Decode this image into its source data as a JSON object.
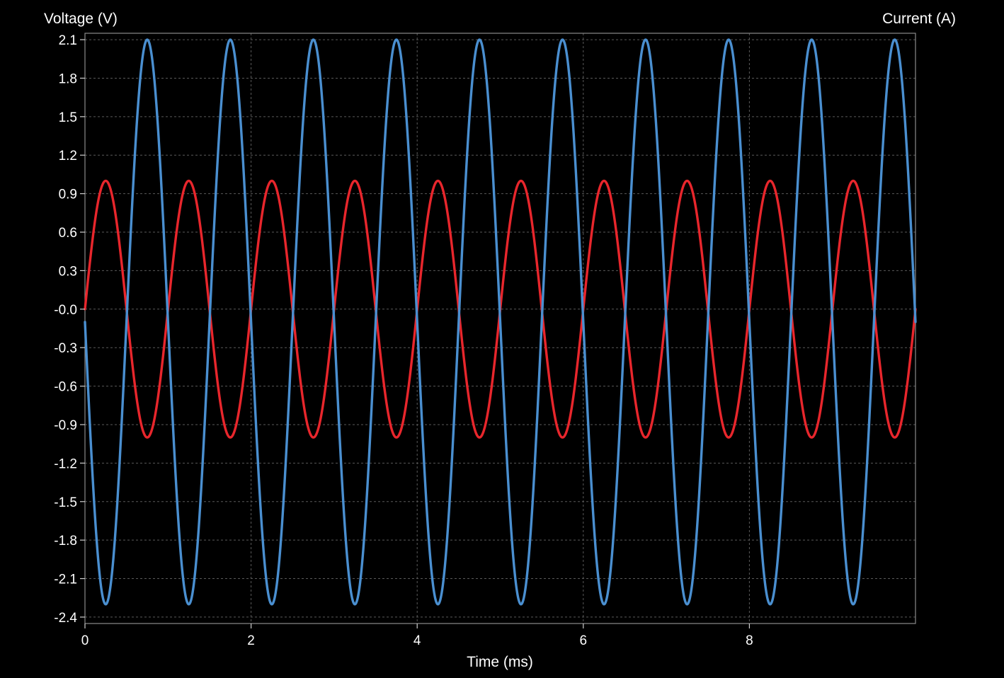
{
  "chart_data": {
    "type": "line",
    "xlabel": "Time (ms)",
    "ylabel_left": "Voltage (V)",
    "ylabel_right": "Current (A)",
    "xlim": [
      0,
      10
    ],
    "ylim": [
      -2.45,
      2.15
    ],
    "x_ticks": [
      0,
      2,
      4,
      6,
      8
    ],
    "x_tick_labels": [
      "0",
      "2",
      "4",
      "6",
      "8"
    ],
    "y_ticks": [
      2.1,
      1.8,
      1.5,
      1.2,
      0.9,
      0.6,
      0.3,
      0.0,
      -0.3,
      -0.6,
      -0.9,
      -1.2,
      -1.5,
      -1.8,
      -2.1,
      -2.4
    ],
    "y_tick_labels": [
      "2.1",
      "1.8",
      "1.5",
      "1.2",
      "0.9",
      "0.6",
      "0.3",
      "-0.0",
      "-0.3",
      "-0.6",
      "-0.9",
      "-1.2",
      "-1.5",
      "-1.8",
      "-2.1",
      "-2.4"
    ],
    "grid": true,
    "series": [
      {
        "color": "#e8262c",
        "function": "sine",
        "amplitude": 1.0,
        "frequency_khz": 1.0,
        "phase": 0
      },
      {
        "color": "#4a8fd0",
        "function": "sine",
        "amplitude": 2.2,
        "frequency_khz": 1.0,
        "phase": 3.14159,
        "offset": -0.1
      }
    ]
  }
}
